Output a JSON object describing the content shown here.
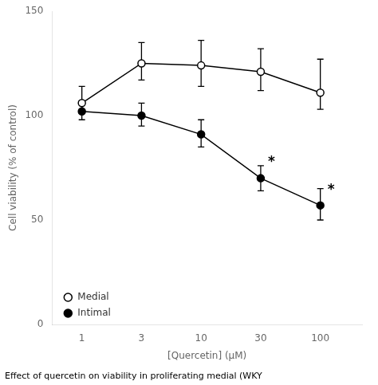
{
  "chart_data": {
    "type": "line",
    "xlabel": "[Quercetin] (μM)",
    "ylabel": "Cell viability (% of control)",
    "caption": "Effect of quercetin on viability in proliferating medial (WKY",
    "categories": [
      "1",
      "3",
      "10",
      "30",
      "100"
    ],
    "series": [
      {
        "name": "Medial",
        "color": "#000000",
        "marker": "open_circle",
        "values": [
          106,
          125,
          124,
          121,
          111
        ],
        "error_lower": [
          5,
          8,
          10,
          9,
          8
        ],
        "error_upper": [
          8,
          10,
          12,
          11,
          16
        ]
      },
      {
        "name": "Intimal",
        "color": "#000000",
        "marker": "circle",
        "values": [
          102,
          100,
          91,
          70,
          57
        ],
        "error_lower": [
          4,
          5,
          6,
          6,
          7
        ],
        "error_upper": [
          5,
          6,
          7,
          6,
          8
        ]
      }
    ],
    "annotations": [
      {
        "text": "*",
        "x": "30",
        "y": 79
      },
      {
        "text": "*",
        "x": "100",
        "y": 66
      }
    ],
    "ylim": [
      0,
      150
    ],
    "yticks": [
      0,
      50,
      100,
      150
    ],
    "grid": false,
    "legend": "lower left"
  }
}
